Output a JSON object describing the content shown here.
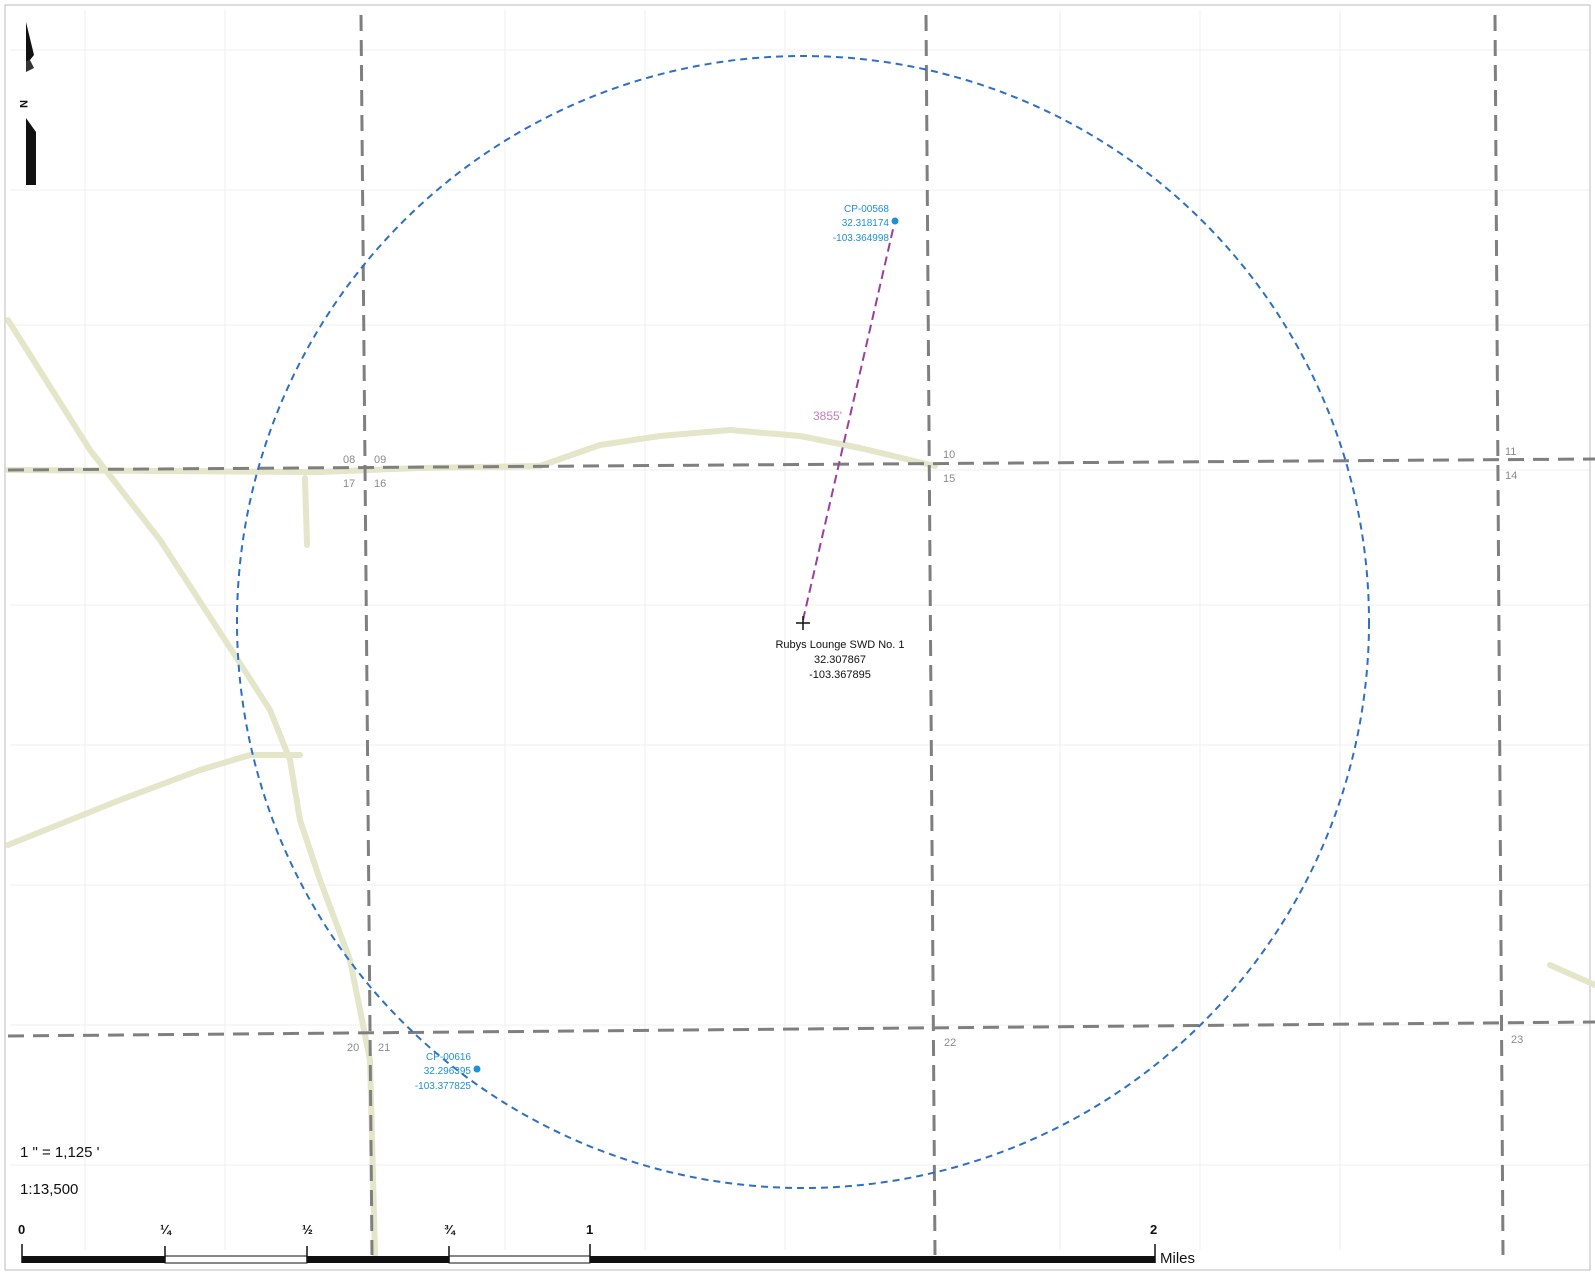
{
  "sections": [
    "08",
    "09",
    "17",
    "16",
    "10",
    "15",
    "11",
    "14",
    "20",
    "21",
    "22",
    "23"
  ],
  "north_arrow": {
    "label": "N"
  },
  "site": {
    "name": "Rubys Lounge SWD No. 1",
    "lat": "32.307867",
    "lon": "-103.367895"
  },
  "wells": [
    {
      "id": "CP-00568",
      "lat": "32.318174",
      "lon": "-103.364998"
    },
    {
      "id": "CP-00616",
      "lat": "32.296395",
      "lon": "-103.377825"
    }
  ],
  "distance": {
    "label": "3855'"
  },
  "scale": {
    "ratio_inches": "1 \" = 1,125 '",
    "ratio": "1:13,500",
    "ticks": [
      "0",
      "¼",
      "½",
      "¾",
      "1",
      "2"
    ],
    "unit": "Miles"
  },
  "colors": {
    "radius_circle": "#2e6fc4",
    "well": "#1e90d6",
    "distance_line": "#9b3f9b",
    "roads": "#e6e8cc",
    "section_lines": "#8a8a8a",
    "grid": "#eeeeee"
  }
}
